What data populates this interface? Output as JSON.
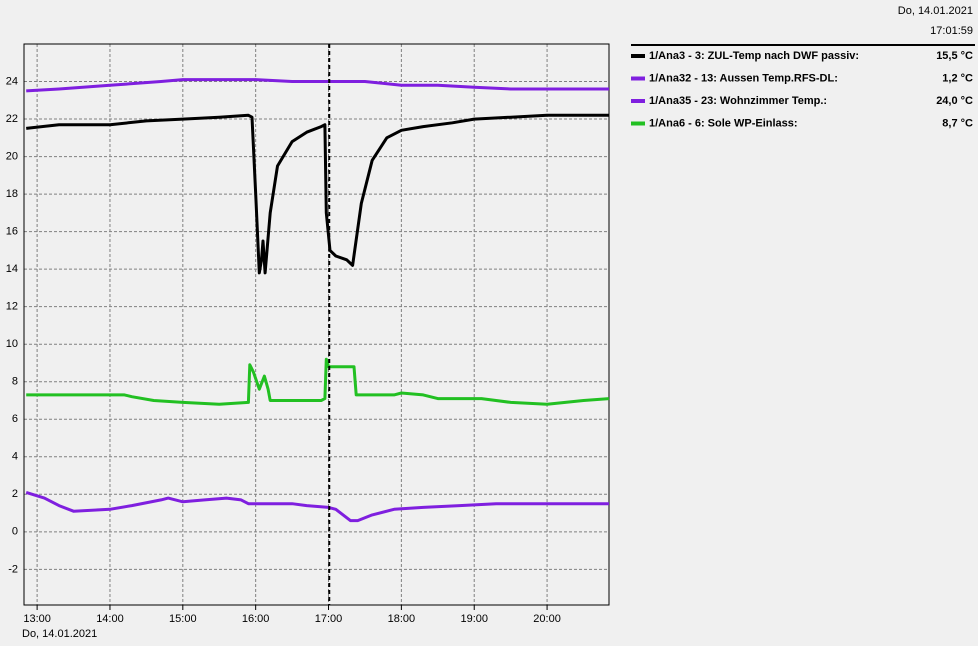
{
  "header": {
    "date": "Do, 14.01.2021",
    "time": "17:01:59"
  },
  "chart_data": {
    "type": "line",
    "xlim": [
      12.82,
      20.85
    ],
    "ylim": [
      -3.9,
      26
    ],
    "yticks": [
      -2,
      0,
      2,
      4,
      6,
      8,
      10,
      12,
      14,
      16,
      18,
      20,
      22,
      24
    ],
    "xticks": [
      {
        "value": 13,
        "label": "13:00"
      },
      {
        "value": 14,
        "label": "14:00"
      },
      {
        "value": 15,
        "label": "15:00"
      },
      {
        "value": 16,
        "label": "16:00"
      },
      {
        "value": 17,
        "label": "17:00"
      },
      {
        "value": 18,
        "label": "18:00"
      },
      {
        "value": 19,
        "label": "19:00"
      },
      {
        "value": 20,
        "label": "20:00"
      }
    ],
    "x_label": "Do, 14.01.2021",
    "grid": true,
    "cursor_x": 17.01,
    "series": [
      {
        "name": "1/Ana3 - 3: ZUL-Temp nach DWF passiv:",
        "current": "15,5 °C",
        "color": "#000000",
        "x": [
          12.85,
          13.3,
          14.0,
          14.5,
          15.0,
          15.5,
          15.9,
          15.95,
          16.0,
          16.05,
          16.08,
          16.1,
          16.13,
          16.2,
          16.3,
          16.5,
          16.7,
          16.9,
          16.95,
          16.97,
          17.02,
          17.1,
          17.25,
          17.33,
          17.45,
          17.6,
          17.8,
          18.0,
          18.3,
          18.7,
          19.0,
          19.5,
          20.0,
          20.85
        ],
        "values": [
          21.5,
          21.7,
          21.7,
          21.9,
          22.0,
          22.1,
          22.2,
          22.1,
          18,
          13.8,
          14.5,
          15.5,
          13.8,
          17,
          19.5,
          20.8,
          21.3,
          21.6,
          21.7,
          17,
          15,
          14.7,
          14.5,
          14.2,
          17.5,
          19.8,
          21.0,
          21.4,
          21.6,
          21.8,
          22.0,
          22.1,
          22.2,
          22.2
        ]
      },
      {
        "name": "1/Ana32 - 13: Aussen Temp.RFS-DL:",
        "current": "1,2 °C",
        "color": "#7f1fdf",
        "x": [
          12.85,
          13.1,
          13.3,
          13.5,
          14.0,
          14.3,
          14.7,
          14.8,
          15.0,
          15.3,
          15.6,
          15.8,
          15.9,
          16.5,
          16.7,
          17.0,
          17.1,
          17.3,
          17.4,
          17.6,
          17.9,
          18.3,
          18.8,
          19.3,
          20.85
        ],
        "values": [
          2.1,
          1.8,
          1.4,
          1.1,
          1.2,
          1.4,
          1.7,
          1.8,
          1.6,
          1.7,
          1.8,
          1.7,
          1.5,
          1.5,
          1.4,
          1.3,
          1.2,
          0.6,
          0.6,
          0.9,
          1.2,
          1.3,
          1.4,
          1.5,
          1.5
        ]
      },
      {
        "name": "1/Ana35 - 23: Wohnzimmer Temp.:",
        "current": "24,0 °C",
        "color": "#7f1fdf",
        "x": [
          12.85,
          13.3,
          14.0,
          14.7,
          15.0,
          16.0,
          16.5,
          17.0,
          17.5,
          18.0,
          18.5,
          19.0,
          19.5,
          20.85
        ],
        "values": [
          23.5,
          23.6,
          23.8,
          24.0,
          24.1,
          24.1,
          24.0,
          24.0,
          24.0,
          23.8,
          23.8,
          23.7,
          23.6,
          23.6
        ]
      },
      {
        "name": "1/Ana6 - 6: Sole WP-Einlass:",
        "current": "8,7 °C",
        "color": "#22c022",
        "x": [
          12.85,
          14.2,
          14.3,
          14.6,
          15.0,
          15.5,
          15.9,
          15.92,
          15.97,
          16.05,
          16.12,
          16.17,
          16.2,
          16.9,
          16.95,
          16.97,
          17.0,
          17.35,
          17.38,
          17.9,
          18.0,
          18.3,
          18.5,
          19.1,
          19.5,
          20.0,
          20.5,
          20.85
        ],
        "values": [
          7.3,
          7.3,
          7.2,
          7.0,
          6.9,
          6.8,
          6.9,
          8.9,
          8.5,
          7.6,
          8.3,
          7.6,
          7.0,
          7.0,
          7.1,
          9.2,
          8.8,
          8.8,
          7.3,
          7.3,
          7.4,
          7.3,
          7.1,
          7.1,
          6.9,
          6.8,
          7.0,
          7.1
        ]
      }
    ]
  }
}
